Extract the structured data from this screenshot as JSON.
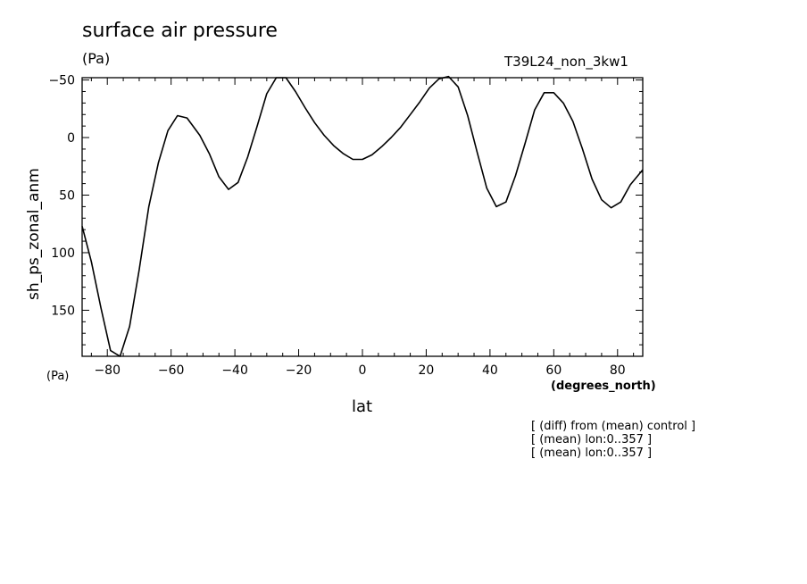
{
  "header": {
    "title": "surface air pressure",
    "units": "(Pa)",
    "run_name": "T39L24_non_3kw1"
  },
  "axes": {
    "y_units_bottom": "(Pa)",
    "x_units": "(degrees_north)",
    "x_label": "lat",
    "y_label": "sh_ps_zonal_anm"
  },
  "notes": [
    "[ (diff) from (mean) control ]",
    "[ (mean) lon:0..357 ]",
    "[ (mean) lon:0..357 ]"
  ],
  "chart_data": {
    "type": "line",
    "title": "surface air pressure",
    "xlabel": "lat",
    "ylabel": "sh_ps_zonal_anm",
    "x_units": "(degrees_north)",
    "y_units": "(Pa)",
    "xlim": [
      -87.9,
      87.9
    ],
    "ylim": [
      -52,
      190
    ],
    "y_inverted": true,
    "x_ticks": [
      -80,
      -60,
      -40,
      -20,
      0,
      20,
      40,
      60,
      80
    ],
    "x_tick_labels": [
      "−80",
      "−60",
      "−40",
      "−20",
      "0",
      "20",
      "40",
      "60",
      "80"
    ],
    "y_ticks": [
      -50,
      0,
      50,
      100,
      150
    ],
    "y_tick_labels": [
      "−50",
      "0",
      "50",
      "100",
      "150"
    ],
    "grid": false,
    "series": [
      {
        "x": [
          -87.9,
          -85,
          -82,
          -79,
          -76,
          -73,
          -70,
          -67,
          -64,
          -61,
          -58,
          -55,
          -51,
          -48,
          -45,
          -42,
          -39,
          -36,
          -33,
          -30,
          -27,
          -24,
          -21,
          -18,
          -15,
          -12,
          -9,
          -6,
          -3,
          0,
          3,
          6,
          9,
          12,
          15,
          18,
          21,
          24,
          27,
          30,
          33,
          36,
          39,
          42,
          45,
          48,
          51,
          54,
          57,
          60,
          63,
          66,
          69,
          72,
          75,
          78,
          81,
          84,
          87.9
        ],
        "y": [
          77,
          108,
          148,
          185,
          190,
          164,
          115,
          60,
          22,
          -6,
          -19,
          -17,
          -2,
          14,
          34,
          45,
          39,
          17,
          -10,
          -38,
          -52,
          -52,
          -40,
          -26,
          -13,
          -2,
          7,
          14,
          19,
          19,
          15,
          8,
          0,
          -9,
          -20,
          -31,
          -43,
          -51,
          -53,
          -44,
          -19,
          13,
          44,
          60,
          56,
          33,
          5,
          -24,
          -39,
          -39,
          -30,
          -14,
          10,
          36,
          54,
          61,
          56,
          41,
          28
        ]
      }
    ]
  }
}
